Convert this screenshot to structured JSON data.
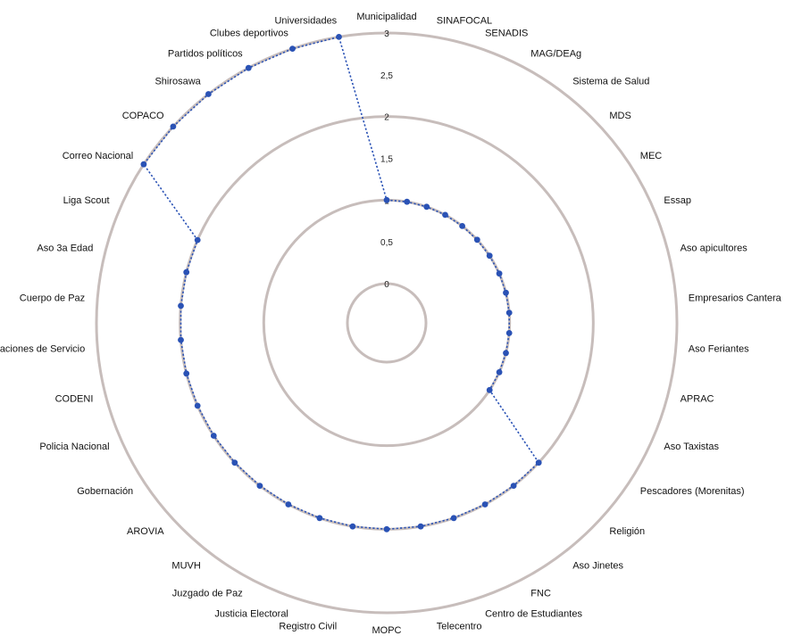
{
  "chart_data": {
    "type": "radar",
    "title": "",
    "rlim": [
      0,
      3
    ],
    "ticks": [
      0,
      0.5,
      1,
      1.5,
      2,
      2.5,
      3
    ],
    "tick_labels": [
      "0",
      "0,5",
      "1",
      "1,5",
      "2",
      "2,5",
      "3"
    ],
    "grid": true,
    "categories": [
      "Municipalidad",
      "SINAFOCAL",
      "SENADIS",
      "MAG/DEAg",
      "Sistema de Salud",
      "MDS",
      "MEC",
      "Essap",
      "Aso apicultores",
      "Empresarios Cantera",
      "Aso Feriantes",
      "APRAC",
      "Aso Taxistas",
      "Pescadores (Morenitas)",
      "Religión",
      "Aso Jinetes",
      "FNC",
      "Centro de Estudiantes",
      "Telecentro",
      "MOPC",
      "Registro Civil",
      "Justicia Electoral",
      "Juzgado de Paz",
      "MUVH",
      "AROVIA",
      "Gobernación",
      "Policia Nacional",
      "CODENI",
      "Estaciones de Servicio",
      "Cuerpo de Paz",
      "Aso 3a Edad",
      "Liga Scout",
      "Correo Nacional",
      "COPACO",
      "Shirosawa",
      "Partidos políticos",
      "Clubes deportivos",
      "Universidades"
    ],
    "series": [
      {
        "values": [
          1,
          1,
          1,
          1,
          1,
          1,
          1,
          1,
          1,
          1,
          1,
          1,
          1,
          1,
          2,
          2,
          2,
          2,
          2,
          2,
          2,
          2,
          2,
          2,
          2,
          2,
          2,
          2,
          2,
          2,
          2,
          2,
          3,
          3,
          3,
          3,
          3,
          3
        ],
        "color": "#2a52b5"
      }
    ]
  }
}
